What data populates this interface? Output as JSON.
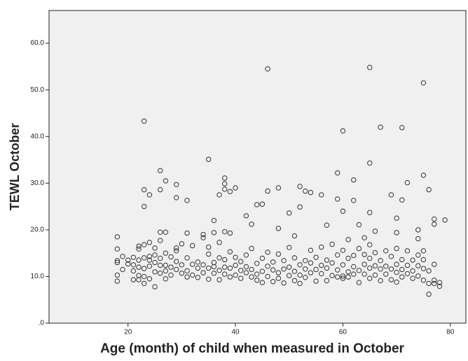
{
  "chart_data": {
    "type": "scatter",
    "x_label": "Age (month) of child when measured in October",
    "y_label": "TEWL October",
    "xlim": [
      5.3,
      82.9
    ],
    "ylim": [
      0,
      67
    ],
    "xticks": [
      20,
      40,
      60,
      80
    ],
    "yticks": [
      {
        "value": 0,
        "label": ".0"
      },
      {
        "value": 10,
        "label": "10.0"
      },
      {
        "value": 20,
        "label": "20.0"
      },
      {
        "value": 30,
        "label": "30.0"
      },
      {
        "value": 40,
        "label": "40.0"
      },
      {
        "value": 50,
        "label": "50.0"
      },
      {
        "value": 60,
        "label": "60.0"
      }
    ],
    "color": "#333333",
    "x": [
      23,
      46,
      65,
      75,
      60,
      67,
      71,
      35,
      65,
      59,
      26,
      75,
      72,
      62,
      29,
      29,
      27,
      23,
      24,
      38,
      38,
      38,
      39,
      40,
      37,
      45,
      44,
      46,
      48,
      52,
      53,
      54,
      56,
      59,
      62,
      65,
      69,
      70,
      71,
      76,
      77,
      79,
      23,
      26,
      31,
      36,
      42,
      43,
      50,
      52,
      57,
      60,
      61,
      63,
      64,
      66,
      70,
      74,
      77,
      48,
      18,
      26,
      27,
      31,
      34,
      36,
      38,
      39,
      51,
      18,
      18,
      18,
      18,
      18,
      19,
      19,
      20,
      20,
      21,
      21,
      21,
      21,
      22,
      22,
      22,
      22,
      22,
      22,
      23,
      23,
      23,
      23,
      23,
      24,
      24,
      24,
      24,
      24,
      25,
      25,
      25,
      25,
      25,
      26,
      26,
      26,
      26,
      27,
      27,
      27,
      27,
      28,
      28,
      28,
      29,
      29,
      29,
      29,
      30,
      30,
      30,
      31,
      31,
      31,
      32,
      32,
      32,
      33,
      33,
      33,
      34,
      34,
      34,
      35,
      35,
      35,
      35,
      36,
      36,
      36,
      37,
      37,
      37,
      37,
      38,
      38,
      38,
      39,
      39,
      39,
      40,
      40,
      40,
      41,
      41,
      41,
      42,
      42,
      42,
      43,
      43,
      43,
      44,
      44,
      44,
      45,
      45,
      45,
      46,
      46,
      46,
      47,
      47,
      47,
      48,
      48,
      48,
      49,
      49,
      49,
      50,
      50,
      50,
      51,
      51,
      51,
      52,
      52,
      52,
      53,
      53,
      53,
      54,
      54,
      54,
      55,
      55,
      55,
      56,
      56,
      56,
      57,
      57,
      57,
      58,
      58,
      58,
      59,
      59,
      59,
      60,
      60,
      60,
      60,
      61,
      61,
      61,
      62,
      62,
      62,
      63,
      63,
      63,
      64,
      64,
      64,
      65,
      65,
      65,
      65,
      66,
      66,
      66,
      67,
      67,
      67,
      68,
      68,
      68,
      69,
      69,
      69,
      70,
      70,
      70,
      70,
      71,
      71,
      71,
      72,
      72,
      72,
      73,
      73,
      73,
      74,
      74,
      74,
      74,
      75,
      75,
      75,
      75,
      76,
      76,
      76,
      77,
      77,
      77,
      78,
      78
    ],
    "values": [
      43.3,
      54.5,
      54.8,
      51.5,
      41.2,
      42,
      41.9,
      35.1,
      34.3,
      32.2,
      32.7,
      31.7,
      30.1,
      30.7,
      29.7,
      26.9,
      30.5,
      28.6,
      27.5,
      31.1,
      29.9,
      28.7,
      28.2,
      29,
      27.5,
      25.5,
      25.4,
      28.3,
      29,
      29.3,
      28.3,
      28,
      27.5,
      26.6,
      26.3,
      23.7,
      27.5,
      22.5,
      26.4,
      28.6,
      22.3,
      22.1,
      25,
      28.6,
      26.3,
      22,
      23,
      21.2,
      23.6,
      24.9,
      21,
      24,
      17.9,
      21.1,
      18.3,
      19.7,
      19.4,
      20,
      21.2,
      20.3,
      18.5,
      19.5,
      19.5,
      19.3,
      19,
      19.4,
      19.6,
      19.3,
      18.7,
      13,
      10.3,
      9,
      15.9,
      13.4,
      14.3,
      11.5,
      12.7,
      13.5,
      9.3,
      11.2,
      12.5,
      14.1,
      9.3,
      15.9,
      12,
      10.2,
      13.5,
      16.5,
      8.5,
      16.8,
      11.7,
      14,
      10,
      13.5,
      9.5,
      17.3,
      12.2,
      14.3,
      7.8,
      14.6,
      11,
      16.1,
      13,
      10.7,
      13.9,
      17.7,
      12.4,
      9.5,
      15,
      12.4,
      11.2,
      10.3,
      14.2,
      12,
      11.5,
      16.1,
      13.2,
      15.5,
      10.7,
      12.5,
      17,
      11.2,
      14,
      9.9,
      10.3,
      12.6,
      16.6,
      11.8,
      9.8,
      13.1,
      10.8,
      12.5,
      18.3,
      9.4,
      11.8,
      14.8,
      16.3,
      10.7,
      13,
      12.1,
      9.3,
      11.3,
      14,
      17.3,
      12,
      10.5,
      13.6,
      11.8,
      9.9,
      15.3,
      10.3,
      12.4,
      14.1,
      9.6,
      11.3,
      13.2,
      10.8,
      12.1,
      14.6,
      9.9,
      11.5,
      16,
      10.5,
      12.8,
      9.2,
      11.1,
      13.9,
      8.7,
      10,
      12.2,
      15.2,
      8.9,
      11.4,
      13.1,
      9.6,
      10.8,
      14.8,
      11.6,
      13.4,
      8.6,
      10.2,
      12,
      16.2,
      9.1,
      11.1,
      14,
      12.5,
      10.3,
      8.5,
      11.6,
      13.4,
      9.8,
      10.8,
      12.9,
      15.6,
      9,
      11.5,
      14.1,
      12.4,
      10.6,
      16.3,
      9.1,
      11.8,
      13.5,
      10.2,
      12.9,
      16.9,
      9.9,
      11.4,
      14.6,
      10.1,
      12.5,
      9.6,
      15.6,
      11,
      13.9,
      9.9,
      10.5,
      12.1,
      14.5,
      8.7,
      11.3,
      16,
      10.5,
      12.6,
      14.7,
      9.6,
      11.8,
      13.9,
      16.8,
      10.3,
      12.3,
      15.1,
      9.1,
      11.6,
      13.4,
      10.5,
      12.2,
      15.5,
      9.3,
      11.6,
      14.3,
      8.8,
      10.9,
      12.6,
      16,
      11.5,
      13.6,
      9.9,
      10.6,
      12.4,
      15.5,
      11.2,
      13.5,
      9.6,
      10.1,
      12.3,
      14.6,
      18.1,
      9.2,
      11.7,
      13.6,
      15.5,
      6.2,
      8.5,
      11.2,
      9.2,
      12.6,
      8.5,
      7.9,
      8.7
    ]
  }
}
